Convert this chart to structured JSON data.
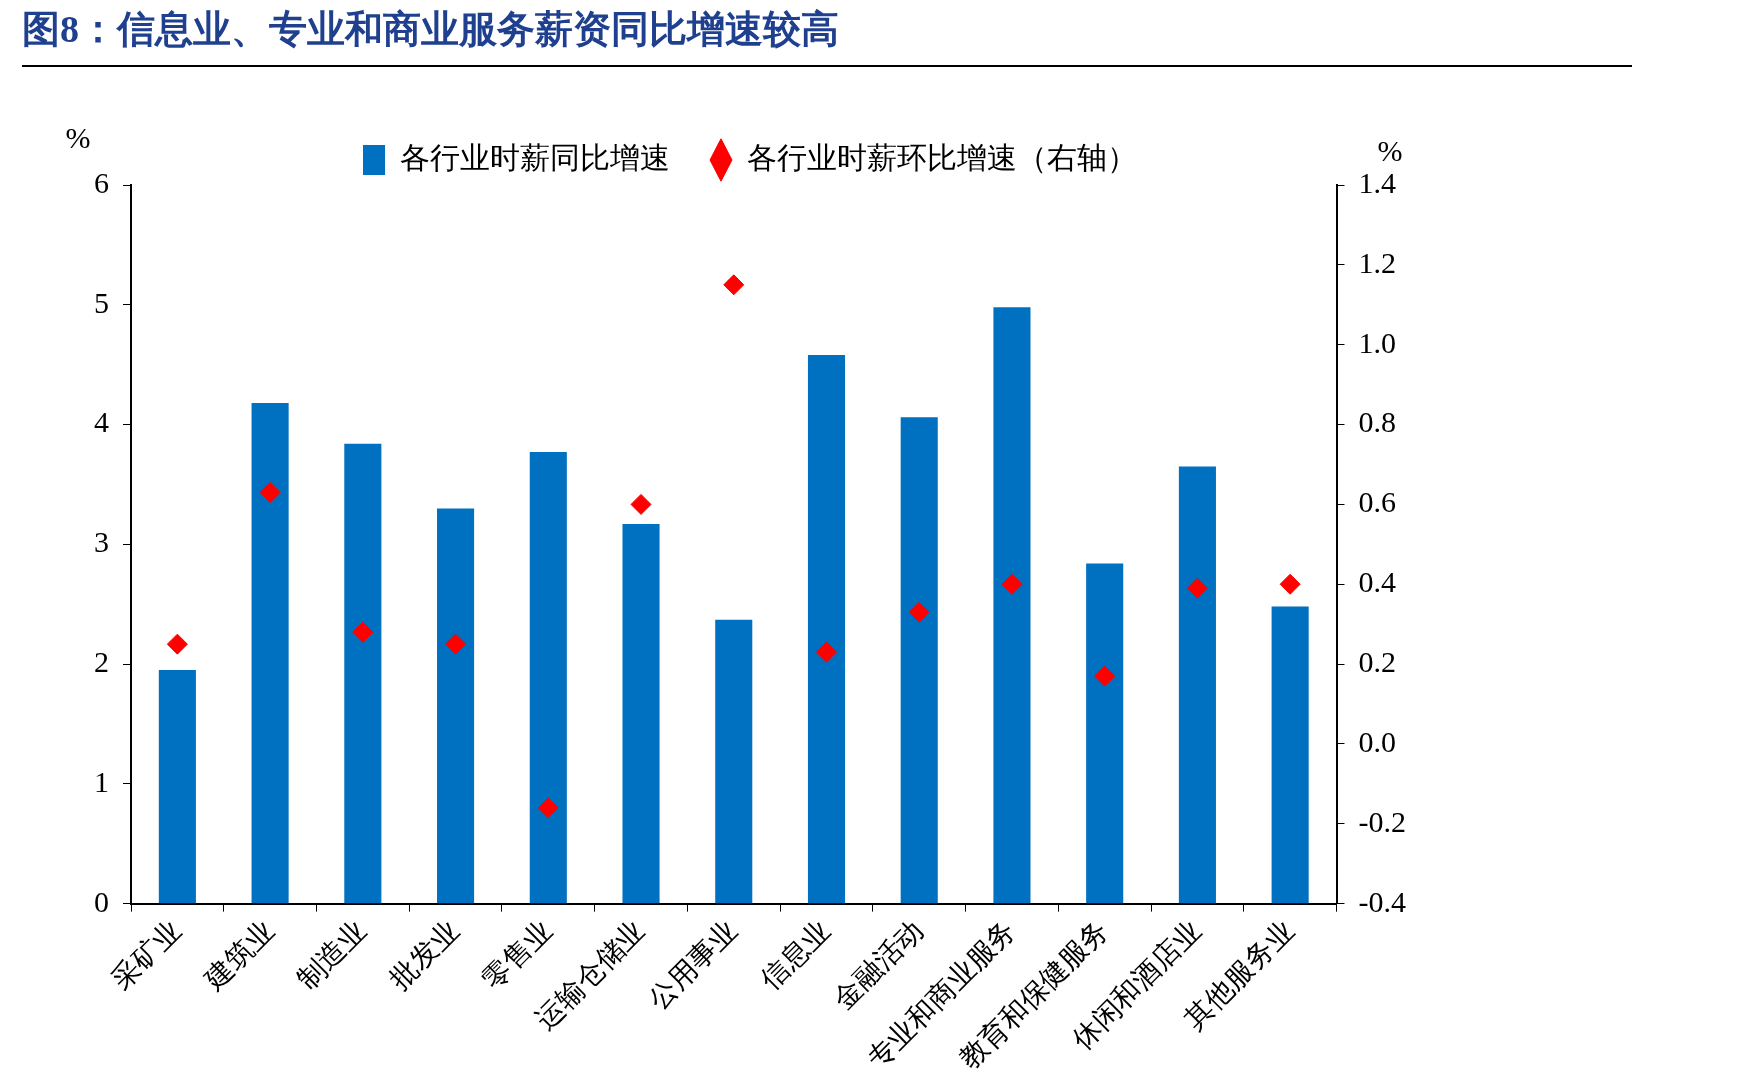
{
  "chart_data": {
    "type": "bar",
    "title": "图8：信息业、专业和商业服务薪资同比增速较高",
    "ylabel": "%",
    "y2label": "%",
    "categories": [
      "采矿业",
      "建筑业",
      "制造业",
      "批发业",
      "零售业",
      "运输仓储业",
      "公用事业",
      "信息业",
      "金融活动",
      "专业和商业服务",
      "教育和保健服务",
      "休闲和酒店业",
      "其他服务业"
    ],
    "series": [
      {
        "name": "各行业时薪同比增速",
        "color": "#0070c0",
        "values": [
          1.95,
          4.18,
          3.84,
          3.3,
          3.77,
          3.17,
          2.37,
          4.58,
          4.06,
          4.98,
          2.84,
          3.65,
          2.48
        ]
      },
      {
        "name": "各行业时薪环比增速（右轴）",
        "type": "scatter",
        "axis": "y2",
        "marker": "diamond",
        "color": "#ff0000",
        "values": [
          0.25,
          0.63,
          0.28,
          0.25,
          -0.16,
          0.6,
          1.15,
          0.23,
          0.33,
          0.4,
          0.17,
          0.39,
          0.4
        ]
      }
    ],
    "ylim": [
      0,
      6
    ],
    "yticks": [
      0,
      1,
      2,
      3,
      4,
      5,
      6
    ],
    "y2lim": [
      -0.4,
      1.4
    ],
    "y2ticks": [
      -0.4,
      -0.2,
      {
        "value": 0,
        "label": "0.0"
      },
      0.2,
      0.4,
      0.6,
      0.8,
      {
        "value": 1,
        "label": "1.0"
      },
      1.2,
      1.4
    ],
    "grid": false,
    "legend": "top"
  }
}
